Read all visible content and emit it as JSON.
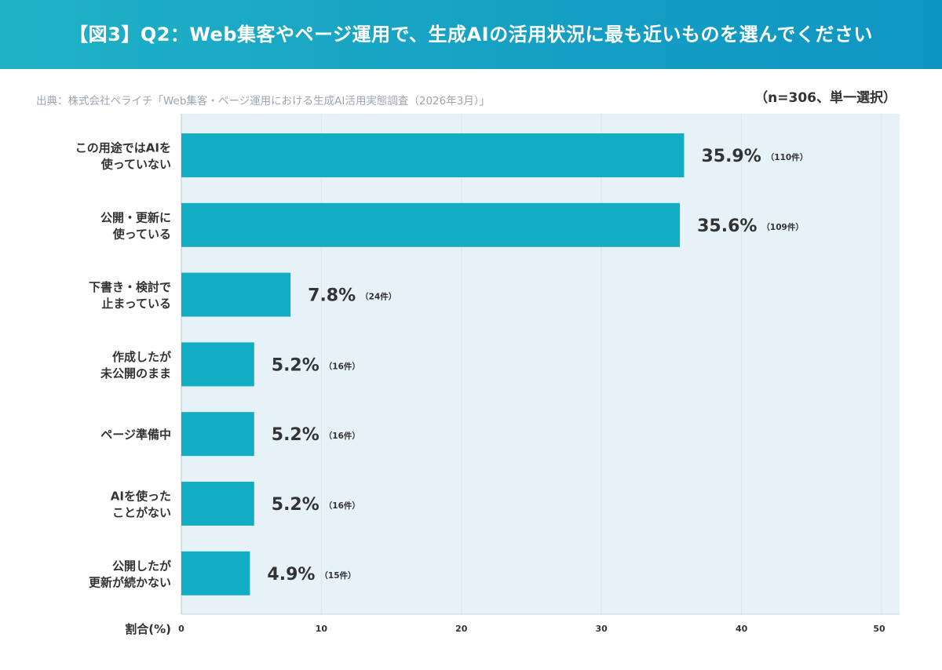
{
  "header": {
    "title": "【図3】Q2：Web集客やページ運用で、生成AIの活用状況に最も近いものを選んでください"
  },
  "source": "出典：株式会社ペライチ「Web集客・ページ運用における生成AI活用実態調査（2026年3月）」",
  "sample_note": "（n=306、単一選択）",
  "colors": {
    "header": "#15a4c4",
    "bar": "#13adc3",
    "plot_bg": "#e6f2f8"
  },
  "chart_data": {
    "type": "bar",
    "orientation": "horizontal",
    "categories": [
      [
        "この用途ではAIを",
        "使っていない"
      ],
      [
        "公開・更新に",
        "使っている"
      ],
      [
        "下書き・検討で",
        "止まっている"
      ],
      [
        "作成したが",
        "未公開のまま"
      ],
      [
        "ページ準備中"
      ],
      [
        "AIを使った",
        "ことがない"
      ],
      [
        "公開したが",
        "更新が続かない"
      ]
    ],
    "values": [
      35.9,
      35.6,
      7.8,
      5.2,
      5.2,
      5.2,
      4.9
    ],
    "value_labels": [
      "35.9%",
      "35.6%",
      "7.8%",
      "5.2%",
      "5.2%",
      "5.2%",
      "4.9%"
    ],
    "counts": [
      "（110件）",
      "（109件）",
      "（24件）",
      "（16件）",
      "（16件）",
      "（16件）",
      "（15件）"
    ],
    "xlabel": "割合(%)",
    "xlim": [
      0,
      50
    ],
    "xticks": [
      0,
      10,
      20,
      30,
      40,
      50
    ],
    "grid": true
  }
}
